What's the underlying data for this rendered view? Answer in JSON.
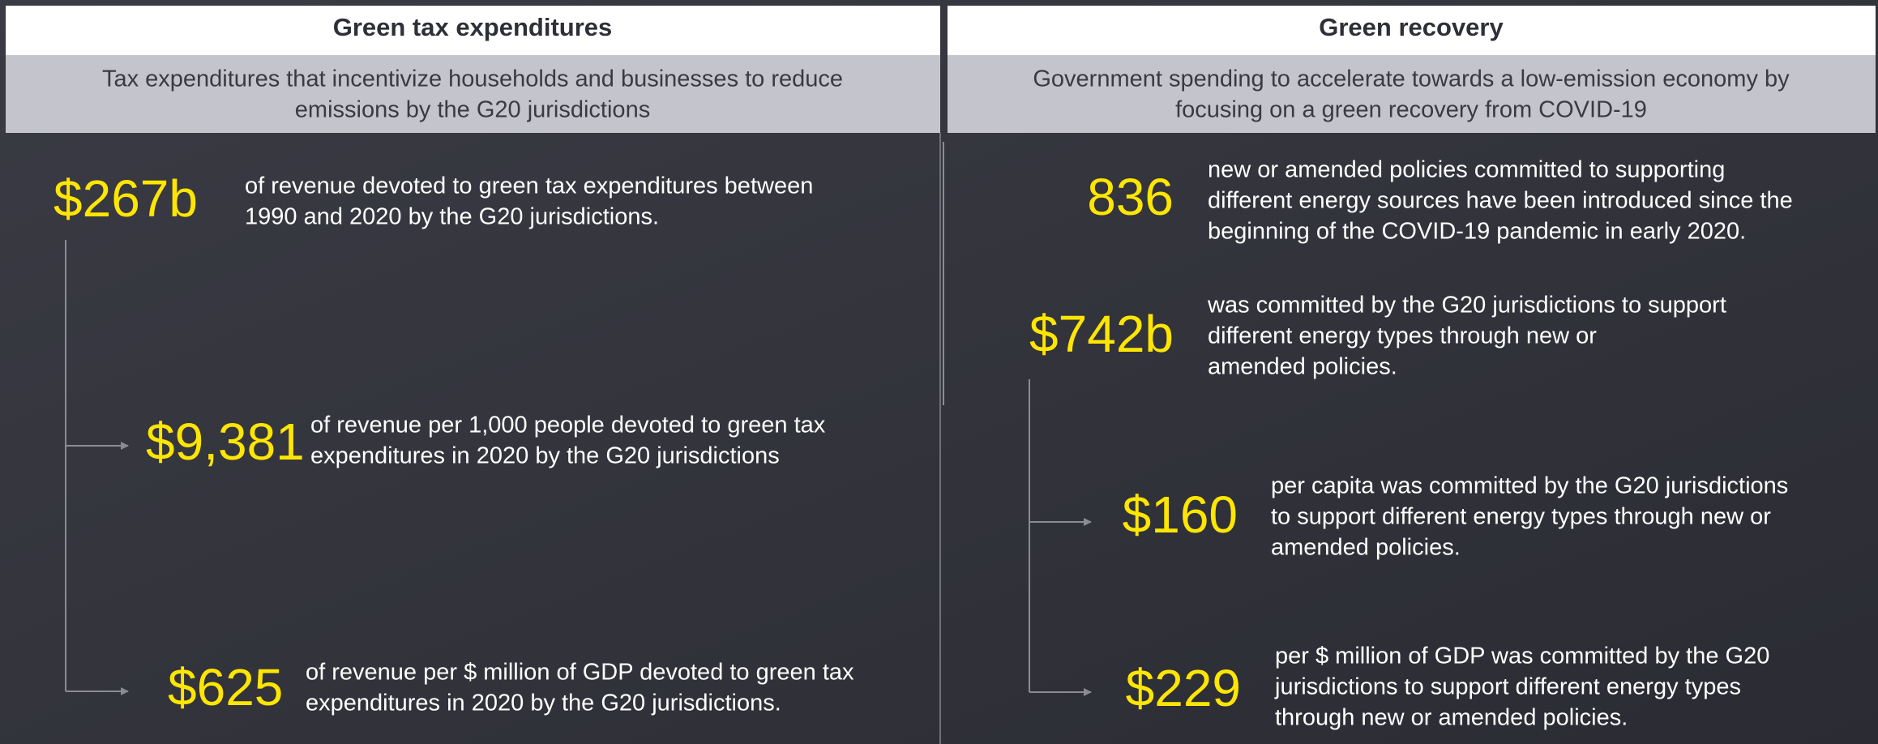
{
  "panels": [
    {
      "title": "Green tax expenditures",
      "subtitle": [
        "Tax expenditures that incentivize households and businesses to reduce",
        "emissions by the G20 jurisdictions"
      ],
      "stats": [
        {
          "value": "$267b",
          "lines": [
            "of revenue devoted to green tax expenditures between",
            "1990 and 2020 by the G20 jurisdictions."
          ]
        },
        {
          "value": "$9,381",
          "lines": [
            "of revenue per 1,000 people devoted to green tax",
            "expenditures in 2020 by the G20 jurisdictions"
          ]
        },
        {
          "value": "$625",
          "lines": [
            "of revenue per $ million of GDP devoted to green tax",
            "expenditures in 2020 by the G20 jurisdictions."
          ]
        }
      ]
    },
    {
      "title": "Green recovery",
      "subtitle": [
        "Government spending to accelerate towards a low-emission economy by",
        "focusing on a green recovery from COVID-19"
      ],
      "stats": [
        {
          "value": "836",
          "lines": [
            "new or amended policies committed to supporting",
            "different energy sources have been introduced since the",
            "beginning of the COVID-19 pandemic in early 2020."
          ]
        },
        {
          "value": "$742b",
          "lines": [
            "was committed by the G20 jurisdictions to support",
            "different energy types through new or",
            "amended policies."
          ]
        },
        {
          "value": "$160",
          "lines": [
            "per capita was committed by the G20 jurisdictions",
            "to support different energy types through new or",
            "amended policies."
          ]
        },
        {
          "value": "$229",
          "lines": [
            "per $ million of GDP was committed by the G20",
            "jurisdictions to support different energy types",
            "through new or amended policies."
          ]
        }
      ]
    }
  ]
}
